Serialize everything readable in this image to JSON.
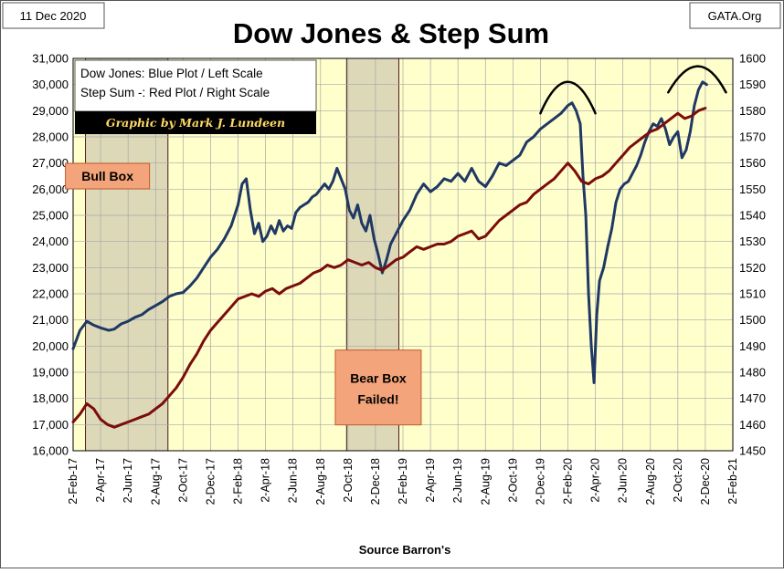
{
  "header": {
    "date": "11 Dec 2020",
    "site": "GATA.Org"
  },
  "chart_data": {
    "type": "line",
    "title": "Dow Jones & Step Sum",
    "xlabel": "Source Barron's",
    "ylabel_left": "Dow Jones",
    "ylabel_right": "Step Sum",
    "ylim_left": [
      16000,
      31000
    ],
    "ylim_right": [
      1450,
      1600
    ],
    "left_ticks": [
      16000,
      17000,
      18000,
      19000,
      20000,
      21000,
      22000,
      23000,
      24000,
      25000,
      26000,
      27000,
      28000,
      29000,
      30000,
      31000
    ],
    "left_tick_labels": [
      "16,000",
      "17,000",
      "18,000",
      "19,000",
      "20,000",
      "21,000",
      "22,000",
      "23,000",
      "24,000",
      "25,000",
      "26,000",
      "27,000",
      "28,000",
      "29,000",
      "30,000",
      "31,000"
    ],
    "right_ticks": [
      1450,
      1460,
      1470,
      1480,
      1490,
      1500,
      1510,
      1520,
      1530,
      1540,
      1550,
      1560,
      1570,
      1580,
      1590,
      1600
    ],
    "right_tick_labels": [
      "1450",
      "1460",
      "1470",
      "1480",
      "1490",
      "1500",
      "1510",
      "1520",
      "1530",
      "1540",
      "1550",
      "1560",
      "1570",
      "1580",
      "1590",
      "1600"
    ],
    "x_tick_labels": [
      "2-Feb-17",
      "2-Apr-17",
      "2-Jun-17",
      "2-Aug-17",
      "2-Oct-17",
      "2-Dec-17",
      "2-Feb-18",
      "2-Apr-18",
      "2-Jun-18",
      "2-Aug-18",
      "2-Oct-18",
      "2-Dec-18",
      "2-Feb-19",
      "2-Apr-19",
      "2-Jun-19",
      "2-Aug-19",
      "2-Oct-19",
      "2-Dec-19",
      "2-Feb-20",
      "2-Apr-20",
      "2-Jun-20",
      "2-Aug-20",
      "2-Oct-20",
      "2-Dec-20",
      "2-Feb-21"
    ],
    "grid": true,
    "legend": {
      "position": "top-left",
      "lines": [
        "Dow Jones: Blue Plot / Left Scale",
        "Step Sum -: Red Plot / Right Scale"
      ],
      "credit": "Graphic by Mark J. Lundeen"
    },
    "shaded_regions": [
      {
        "name": "Bull Box",
        "start_month": 0.9,
        "end_month": 6.9
      },
      {
        "name": "Bear Box",
        "start_month": 19.9,
        "end_month": 23.7
      }
    ],
    "annotations": [
      {
        "text": "Bull Box",
        "month": 2.5,
        "level": 26500
      },
      {
        "text": "Bear Box Failed!",
        "month": 22.2,
        "level": 18000
      }
    ],
    "arcs": [
      {
        "start_month": 34.0,
        "peak_month": 36.0,
        "end_month": 38.0,
        "base_level": 28900,
        "peak_level": 30100
      },
      {
        "start_month": 43.3,
        "peak_month": 45.5,
        "end_month": 47.5,
        "base_level": 29700,
        "peak_level": 30700
      }
    ],
    "series": [
      {
        "name": "Dow Jones",
        "axis": "left",
        "color": "#1f3864",
        "x_months": [
          0.0,
          0.5,
          1.0,
          1.5,
          2.0,
          2.6,
          3.0,
          3.5,
          4.0,
          4.5,
          5.0,
          5.5,
          6.0,
          6.5,
          7.0,
          7.5,
          8.0,
          8.5,
          9.0,
          9.5,
          10.0,
          10.5,
          11.0,
          11.5,
          12.0,
          12.3,
          12.6,
          12.9,
          13.2,
          13.5,
          13.8,
          14.1,
          14.4,
          14.7,
          15.0,
          15.3,
          15.6,
          15.9,
          16.2,
          16.5,
          16.8,
          17.1,
          17.4,
          17.7,
          18.0,
          18.3,
          18.6,
          18.9,
          19.2,
          19.5,
          19.8,
          20.1,
          20.4,
          20.7,
          21.0,
          21.3,
          21.6,
          21.9,
          22.2,
          22.5,
          22.8,
          23.1,
          23.4,
          23.7,
          24.0,
          24.5,
          25.0,
          25.5,
          26.0,
          26.5,
          27.0,
          27.5,
          28.0,
          28.5,
          29.0,
          29.5,
          30.0,
          30.5,
          31.0,
          31.5,
          32.0,
          32.5,
          33.0,
          33.5,
          34.0,
          34.5,
          35.0,
          35.5,
          36.0,
          36.3,
          36.6,
          36.9,
          37.1,
          37.3,
          37.5,
          37.7,
          37.9,
          38.1,
          38.3,
          38.6,
          38.9,
          39.2,
          39.5,
          39.8,
          40.1,
          40.4,
          40.7,
          41.0,
          41.3,
          41.6,
          41.9,
          42.2,
          42.5,
          42.8,
          43.1,
          43.4,
          43.7,
          44.0,
          44.3,
          44.6,
          44.9,
          45.2,
          45.5,
          45.8,
          46.1
        ],
        "values": [
          19900,
          20600,
          20950,
          20800,
          20700,
          20600,
          20650,
          20850,
          20950,
          21100,
          21200,
          21400,
          21550,
          21700,
          21900,
          22000,
          22050,
          22300,
          22600,
          23000,
          23400,
          23700,
          24100,
          24600,
          25400,
          26200,
          26400,
          25200,
          24300,
          24700,
          24000,
          24200,
          24600,
          24300,
          24800,
          24400,
          24600,
          24500,
          25100,
          25300,
          25400,
          25500,
          25700,
          25800,
          26000,
          26200,
          26000,
          26300,
          26800,
          26400,
          26000,
          25200,
          24900,
          25400,
          24700,
          24400,
          25000,
          24100,
          23500,
          22800,
          23300,
          23900,
          24200,
          24500,
          24800,
          25200,
          25800,
          26200,
          25900,
          26100,
          26400,
          26300,
          26600,
          26300,
          26800,
          26300,
          26100,
          26500,
          27000,
          26900,
          27100,
          27300,
          27800,
          28000,
          28300,
          28500,
          28700,
          28900,
          29200,
          29300,
          29000,
          28500,
          26500,
          25000,
          22000,
          20000,
          18600,
          21200,
          22500,
          23000,
          23800,
          24500,
          25500,
          26000,
          26200,
          26300,
          26600,
          26900,
          27300,
          27800,
          28200,
          28500,
          28400,
          28700,
          28300,
          27700,
          28000,
          28200,
          27200,
          27500,
          28200,
          29200,
          29800,
          30100,
          30000
        ]
      },
      {
        "name": "Step Sum",
        "axis": "right",
        "color": "#7b0c0c",
        "x_months": [
          0.0,
          0.5,
          1.0,
          1.5,
          2.0,
          2.5,
          3.0,
          3.5,
          4.0,
          4.5,
          5.0,
          5.5,
          6.0,
          6.5,
          7.0,
          7.5,
          8.0,
          8.5,
          9.0,
          9.5,
          10.0,
          10.5,
          11.0,
          11.5,
          12.0,
          12.5,
          13.0,
          13.5,
          14.0,
          14.5,
          15.0,
          15.5,
          16.0,
          16.5,
          17.0,
          17.5,
          18.0,
          18.5,
          19.0,
          19.5,
          20.0,
          20.5,
          21.0,
          21.5,
          22.0,
          22.5,
          23.0,
          23.5,
          24.0,
          24.5,
          25.0,
          25.5,
          26.0,
          26.5,
          27.0,
          27.5,
          28.0,
          28.5,
          29.0,
          29.5,
          30.0,
          30.5,
          31.0,
          31.5,
          32.0,
          32.5,
          33.0,
          33.5,
          34.0,
          34.5,
          35.0,
          35.5,
          36.0,
          36.5,
          37.0,
          37.5,
          38.0,
          38.5,
          39.0,
          39.5,
          40.0,
          40.5,
          41.0,
          41.5,
          42.0,
          42.5,
          43.0,
          43.5,
          44.0,
          44.5,
          45.0,
          45.5,
          46.0
        ],
        "values": [
          1461,
          1464,
          1468,
          1466,
          1462,
          1460,
          1459,
          1460,
          1461,
          1462,
          1463,
          1464,
          1466,
          1468,
          1471,
          1474,
          1478,
          1483,
          1487,
          1492,
          1496,
          1499,
          1502,
          1505,
          1508,
          1509,
          1510,
          1509,
          1511,
          1512,
          1510,
          1512,
          1513,
          1514,
          1516,
          1518,
          1519,
          1521,
          1520,
          1521,
          1523,
          1522,
          1521,
          1522,
          1520,
          1519,
          1521,
          1523,
          1524,
          1526,
          1528,
          1527,
          1528,
          1529,
          1529,
          1530,
          1532,
          1533,
          1534,
          1531,
          1532,
          1535,
          1538,
          1540,
          1542,
          1544,
          1545,
          1548,
          1550,
          1552,
          1554,
          1557,
          1560,
          1557,
          1553,
          1552,
          1554,
          1555,
          1557,
          1560,
          1563,
          1566,
          1568,
          1570,
          1572,
          1573,
          1575,
          1577,
          1579,
          1577,
          1578,
          1580,
          1581
        ]
      }
    ]
  }
}
